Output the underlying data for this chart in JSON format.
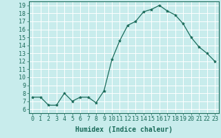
{
  "x": [
    0,
    1,
    2,
    3,
    4,
    5,
    6,
    7,
    8,
    9,
    10,
    11,
    12,
    13,
    14,
    15,
    16,
    17,
    18,
    19,
    20,
    21,
    22,
    23
  ],
  "y": [
    7.5,
    7.5,
    6.5,
    6.5,
    8.0,
    7.0,
    7.5,
    7.5,
    6.8,
    8.3,
    12.2,
    14.6,
    16.5,
    17.0,
    18.2,
    18.5,
    19.0,
    18.3,
    17.8,
    16.7,
    15.0,
    13.8,
    13.0,
    12.0
  ],
  "line_color": "#1a6b5a",
  "marker": "*",
  "marker_size": 3,
  "bg_color": "#c8ecec",
  "grid_color": "#ffffff",
  "xlabel": "Humidex (Indice chaleur)",
  "xlim": [
    -0.5,
    23.5
  ],
  "ylim": [
    5.5,
    19.5
  ],
  "xticks": [
    0,
    1,
    2,
    3,
    4,
    5,
    6,
    7,
    8,
    9,
    10,
    11,
    12,
    13,
    14,
    15,
    16,
    17,
    18,
    19,
    20,
    21,
    22,
    23
  ],
  "yticks": [
    6,
    7,
    8,
    9,
    10,
    11,
    12,
    13,
    14,
    15,
    16,
    17,
    18,
    19
  ],
  "tick_fontsize": 6,
  "xlabel_fontsize": 7,
  "tick_color": "#1a6b5a",
  "axis_color": "#1a6b5a"
}
